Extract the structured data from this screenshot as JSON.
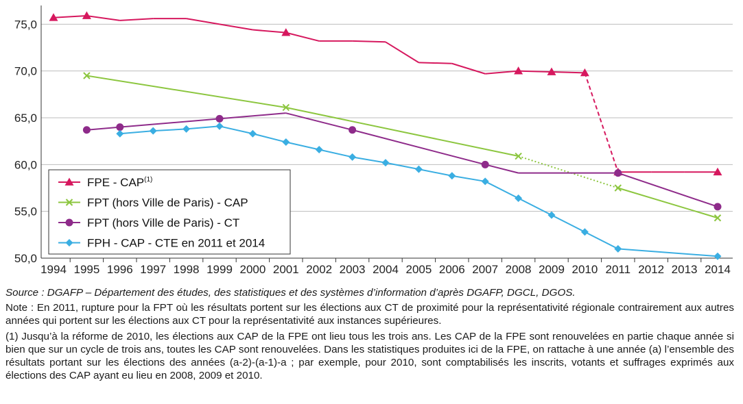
{
  "chart_data": {
    "type": "line",
    "x": [
      1994,
      1995,
      1996,
      1997,
      1998,
      1999,
      2000,
      2001,
      2002,
      2003,
      2004,
      2005,
      2006,
      2007,
      2008,
      2009,
      2010,
      2011,
      2012,
      2013,
      2014
    ],
    "xtick_labels": [
      "1994",
      "1995",
      "1996",
      "1997",
      "1998",
      "1999",
      "2000",
      "2001",
      "2002",
      "2003",
      "2004",
      "2005",
      "2006",
      "2007",
      "2008",
      "2009",
      "2010",
      "2011",
      "2012",
      "2013",
      "2014"
    ],
    "ylim": [
      50,
      77
    ],
    "yticks": [
      50,
      55,
      60,
      65,
      70,
      75
    ],
    "ytick_labels": [
      "50,0",
      "55,0",
      "60,0",
      "65,0",
      "70,0",
      "75,0"
    ],
    "grid": "horizontal",
    "legend_position": "bottom-left",
    "series": [
      {
        "name": "FPE - CAP",
        "name_sup": "(1)",
        "color": "#d6185e",
        "marker": "triangle",
        "points": [
          [
            1994,
            75.7
          ],
          [
            1995,
            75.9
          ],
          [
            1996,
            75.4
          ],
          [
            1997,
            75.6
          ],
          [
            1998,
            75.6
          ],
          [
            1999,
            75.0
          ],
          [
            2000,
            74.4
          ],
          [
            2001,
            74.1
          ],
          [
            2002,
            73.2
          ],
          [
            2003,
            73.2
          ],
          [
            2004,
            73.1
          ],
          [
            2005,
            70.9
          ],
          [
            2006,
            70.8
          ],
          [
            2007,
            69.7
          ],
          [
            2008,
            70.0
          ],
          [
            2009,
            69.9
          ],
          [
            2010,
            69.8
          ],
          [
            2011,
            59.2
          ],
          [
            2012,
            59.2
          ],
          [
            2013,
            59.2
          ],
          [
            2014,
            59.2
          ]
        ],
        "marker_x": [
          1994,
          1995,
          2001,
          2008,
          2009,
          2010,
          2011,
          2014
        ],
        "dashed_segment": [
          2010,
          2011
        ]
      },
      {
        "name": "FPT (hors Ville de Paris) - CAP",
        "color": "#8cc63f",
        "marker": "cross",
        "points": [
          [
            1995,
            69.5
          ],
          [
            2001,
            66.1
          ],
          [
            2008,
            60.9
          ],
          [
            2011,
            57.5
          ],
          [
            2014,
            54.3
          ]
        ],
        "marker_x": [
          1995,
          2001,
          2008,
          2011,
          2014
        ],
        "dashed_segment": [
          2008,
          2011
        ]
      },
      {
        "name": "FPT (hors Ville de Paris) - CT",
        "color": "#8e2b8a",
        "marker": "circle",
        "points": [
          [
            1995,
            63.7
          ],
          [
            1996,
            64.0
          ],
          [
            1999,
            64.9
          ],
          [
            2001,
            65.5
          ],
          [
            2003,
            63.7
          ],
          [
            2007,
            60.0
          ],
          [
            2008,
            59.1
          ],
          [
            2011,
            59.1
          ],
          [
            2014,
            55.5
          ]
        ],
        "marker_x": [
          1995,
          1996,
          1999,
          2003,
          2007,
          2011,
          2014
        ]
      },
      {
        "name": "FPH - CAP - CTE en 2011 et 2014",
        "color": "#3aaee2",
        "marker": "diamond",
        "points": [
          [
            1996,
            63.3
          ],
          [
            1997,
            63.6
          ],
          [
            1998,
            63.8
          ],
          [
            1999,
            64.1
          ],
          [
            2000,
            63.3
          ],
          [
            2001,
            62.4
          ],
          [
            2002,
            61.6
          ],
          [
            2003,
            60.8
          ],
          [
            2004,
            60.2
          ],
          [
            2005,
            59.5
          ],
          [
            2006,
            58.8
          ],
          [
            2007,
            58.2
          ],
          [
            2008,
            56.4
          ],
          [
            2009,
            54.6
          ],
          [
            2010,
            52.8
          ],
          [
            2011,
            51.0
          ],
          [
            2014,
            50.2
          ]
        ],
        "marker_x": [
          1996,
          1997,
          1998,
          1999,
          2000,
          2001,
          2002,
          2003,
          2004,
          2005,
          2006,
          2007,
          2008,
          2009,
          2010,
          2011,
          2014
        ]
      }
    ]
  },
  "notes": {
    "source": "Source : DGAFP – Département des études, des statistiques et des systèmes d’information d’après DGAFP, DGCL, DGOS.",
    "note": "Note : En 2011, rupture pour la FPT où les résultats portent sur les élections aux CT de proximité pour la représentativité régionale contrairement aux autres années qui portent sur les élections aux CT pour la représentativité aux instances supérieures.",
    "footnote": "(1) Jusqu’à la réforme de 2010, les élections aux CAP de la FPE ont lieu tous les trois ans. Les CAP de la FPE sont renouvelées en partie chaque année si bien que sur un cycle de trois ans, toutes les CAP sont renouvelées. Dans les statistiques produites ici de la FPE, on rattache à une année (a) l’ensemble des résultats portant sur les élections des années (a-2)-(a-1)-a ; par exemple, pour 2010, sont comptabilisés les inscrits, votants et suffrages exprimés aux élections des CAP ayant eu lieu en 2008, 2009 et 2010."
  }
}
